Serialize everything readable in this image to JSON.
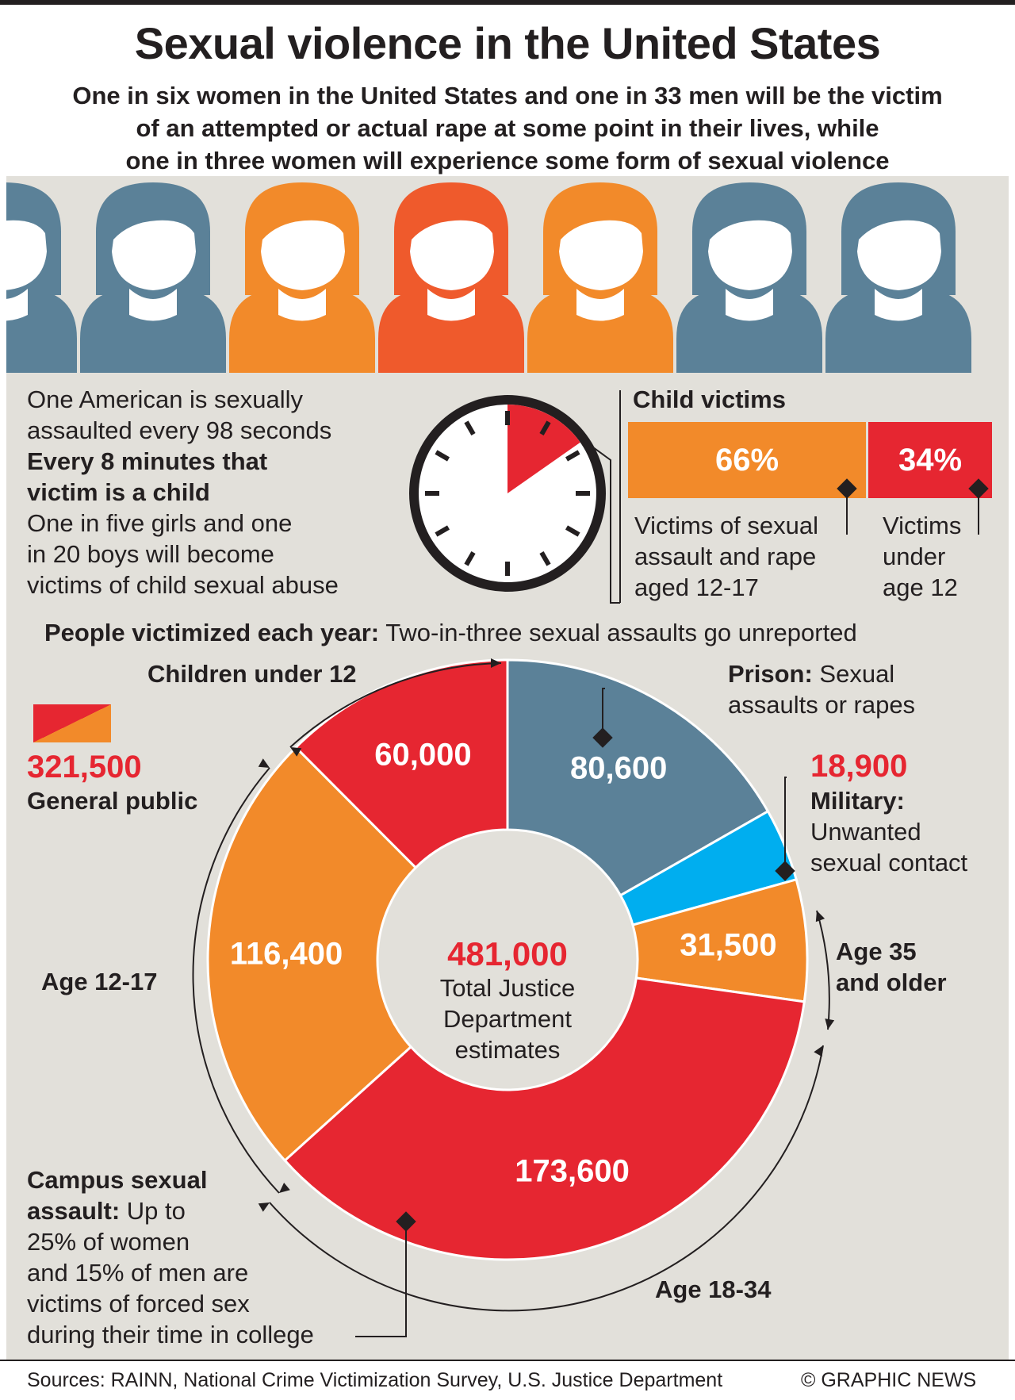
{
  "header": {
    "title": "Sexual violence in the United States",
    "subtitle_lines": [
      "One in six women in the United States and one in 33 men will be the victim",
      "of an attempted or actual rape at some point in their lives, while",
      "one in three women will experience some form of sexual violence"
    ]
  },
  "colors": {
    "blue": "#5b8198",
    "orange": "#f28a2a",
    "orange_red": "#ef5a2c",
    "red": "#e62631",
    "cyan": "#00aeef",
    "panel": "#e2e0da",
    "ink": "#231f20"
  },
  "people_icons": {
    "icon": "woman-icon",
    "colors": [
      "blue",
      "blue",
      "orange",
      "orange_red",
      "orange",
      "blue",
      "blue"
    ]
  },
  "clock": {
    "lines": [
      "One American is sexually",
      "assaulted every 98 seconds"
    ],
    "bold_lines": [
      "Every 8 minutes that",
      "victim is a child"
    ],
    "more_lines": [
      "One in five girls and one",
      "in 20 boys will become",
      "victims of child sexual abuse"
    ],
    "icon": "clock-icon"
  },
  "child_victims": {
    "title": "Child victims",
    "bars": [
      {
        "value": 66,
        "label": "66%",
        "color": "orange"
      },
      {
        "value": 34,
        "label": "34%",
        "color": "red"
      }
    ],
    "note_left_lines": [
      "Victims of sexual",
      "assault and rape",
      "aged 12-17"
    ],
    "note_right_lines": [
      "Victims",
      "under",
      "age 12"
    ]
  },
  "victimized": {
    "bold": "People victimized each year:",
    "rest": " Two-in-three sexual assaults go unreported"
  },
  "donut": {
    "center_value": "481,000",
    "center_lines": [
      "Total Justice",
      "Department",
      "estimates"
    ]
  },
  "annotations": {
    "children_under_12": "Children under 12",
    "general_public_value": "321,500",
    "general_public_label": "General public",
    "prison_bold": "Prison:",
    "prison_rest": " Sexual",
    "prison_line2": "assaults or rapes",
    "military_value": "18,900",
    "military_bold": "Military:",
    "military_lines": [
      "Unwanted",
      "sexual contact"
    ],
    "age_12_17": "Age 12-17",
    "age_35_lines": [
      "Age 35",
      "and older"
    ],
    "age_18_34": "Age 18-34",
    "campus_bold1": "Campus sexual",
    "campus_bold2": "assault:",
    "campus_rest2": " Up to",
    "campus_lines": [
      "25% of women",
      "and 15% of men are",
      "victims of forced sex",
      "during their time in college"
    ]
  },
  "chart_data": {
    "type": "pie",
    "title": "People victimized each year",
    "total": 481000,
    "slices": [
      {
        "label": "Prison",
        "value": 80600,
        "display": "80,600",
        "color": "blue"
      },
      {
        "label": "Military",
        "value": 18900,
        "display": "",
        "color": "cyan"
      },
      {
        "label": "Age 35 and older",
        "value": 31500,
        "display": "31,500",
        "color": "orange"
      },
      {
        "label": "Age 18-34",
        "value": 173600,
        "display": "173,600",
        "color": "red"
      },
      {
        "label": "Age 12-17",
        "value": 116400,
        "display": "116,400",
        "color": "orange"
      },
      {
        "label": "Children under 12",
        "value": 60000,
        "display": "60,000",
        "color": "red"
      }
    ]
  },
  "footer": {
    "sources": "Sources: RAINN, National Crime Victimization Survey, U.S. Justice Department",
    "credit": "© GRAPHIC NEWS"
  }
}
